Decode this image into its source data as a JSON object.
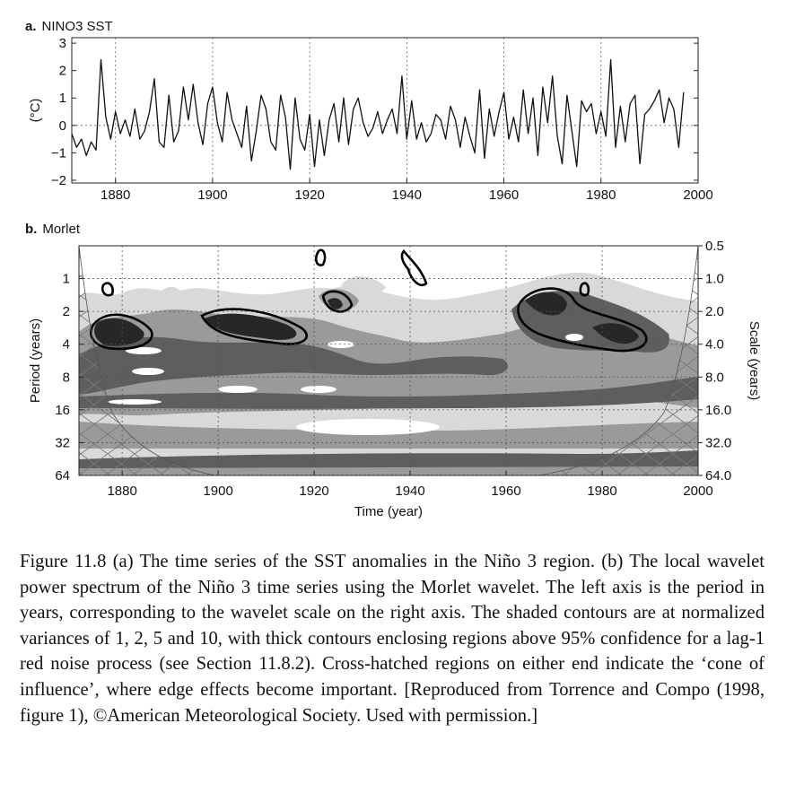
{
  "chart_data": [
    {
      "panel_label": "a.",
      "title": "NINO3 SST",
      "type": "line",
      "ylabel": "(°C)",
      "xlabel": "",
      "xlim": [
        1871,
        2000
      ],
      "ylim": [
        -2.1,
        3.2
      ],
      "xticks": [
        1880,
        1900,
        1920,
        1940,
        1960,
        1980,
        2000
      ],
      "yticks": [
        -2,
        -1,
        0,
        1,
        2,
        3
      ],
      "ytick_labels": [
        "−2",
        "−1",
        "0",
        "1",
        "2",
        "3"
      ],
      "grid": "dotted verticals at ticks, dotted zero line",
      "series": [
        {
          "x": [
            1871,
            1872,
            1873,
            1874,
            1875,
            1876,
            1876.5,
            1877,
            1878,
            1879,
            1880,
            1881,
            1882,
            1883,
            1884,
            1885,
            1886,
            1887,
            1888,
            1889,
            1890,
            1891,
            1892,
            1893,
            1894,
            1895,
            1896,
            1897,
            1898,
            1899,
            1900,
            1901,
            1902,
            1903,
            1904,
            1905,
            1906,
            1907,
            1908,
            1909,
            1910,
            1911,
            1912,
            1913,
            1914,
            1915,
            1916,
            1917,
            1918,
            1919,
            1920,
            1921,
            1922,
            1923,
            1924,
            1925,
            1926,
            1927,
            1928,
            1929,
            1930,
            1931,
            1932,
            1933,
            1934,
            1935,
            1936,
            1937,
            1938,
            1939,
            1940,
            1941,
            1942,
            1943,
            1944,
            1945,
            1946,
            1947,
            1948,
            1949,
            1950,
            1951,
            1952,
            1953,
            1954,
            1955,
            1956,
            1957,
            1958,
            1959,
            1960,
            1961,
            1962,
            1963,
            1964,
            1965,
            1966,
            1967,
            1968,
            1969,
            1970,
            1971,
            1972,
            1973,
            1974,
            1975,
            1976,
            1977,
            1978,
            1979,
            1980,
            1981,
            1982,
            1983,
            1984,
            1985,
            1986,
            1987,
            1988,
            1989,
            1990,
            1991,
            1992,
            1993,
            1994,
            1995,
            1996,
            1997
          ],
          "values": [
            -0.3,
            -0.8,
            -0.5,
            -1.1,
            -0.6,
            -0.9,
            0.8,
            2.4,
            0.3,
            -0.5,
            0.5,
            -0.3,
            0.2,
            -0.4,
            0.6,
            -0.5,
            -0.2,
            0.5,
            1.7,
            -0.6,
            -0.8,
            1.1,
            -0.6,
            -0.2,
            1.4,
            0.2,
            1.5,
            0.1,
            -0.7,
            0.8,
            1.4,
            0.1,
            -0.6,
            1.2,
            0.2,
            -0.3,
            -0.8,
            0.7,
            -1.3,
            -0.2,
            1.1,
            0.6,
            -0.6,
            -0.9,
            1.1,
            0.3,
            -1.6,
            1.0,
            -0.5,
            -0.9,
            0.4,
            -1.5,
            0.2,
            -1.1,
            0.2,
            0.8,
            -0.6,
            1.0,
            -0.7,
            0.6,
            1.0,
            0.1,
            -0.4,
            -0.1,
            0.5,
            -0.3,
            0.2,
            0.6,
            -0.3,
            1.8,
            -0.5,
            0.9,
            -0.5,
            0.1,
            -0.6,
            -0.3,
            0.4,
            0.2,
            -0.5,
            0.7,
            0.2,
            -0.8,
            0.3,
            -0.4,
            -1.0,
            1.3,
            -1.2,
            0.6,
            -0.4,
            0.5,
            1.2,
            -0.5,
            0.3,
            -0.6,
            1.3,
            -0.3,
            1.0,
            -1.1,
            1.4,
            0.1,
            1.8,
            -0.4,
            -1.4,
            1.1,
            -0.2,
            -1.5,
            0.9,
            0.5,
            0.8,
            -0.3,
            0.5,
            -0.4,
            2.4,
            -0.8,
            0.7,
            -0.6,
            0.8,
            1.1,
            -1.4,
            0.4,
            0.6,
            0.9,
            1.3,
            0.1,
            1.0,
            0.6,
            -0.8,
            1.2
          ]
        }
      ]
    },
    {
      "panel_label": "b.",
      "title": "Morlet",
      "type": "heatmap",
      "xlabel": "Time (year)",
      "ylabel": "Period (years)",
      "ylabel_right": "Scale (years)",
      "xlim": [
        1871,
        2000
      ],
      "xticks": [
        1880,
        1900,
        1920,
        1940,
        1960,
        1980,
        2000
      ],
      "yscale": "log2",
      "period_ticks": [
        1,
        2,
        4,
        8,
        16,
        32,
        64
      ],
      "scale_ticks": [
        "0.5",
        "1.0",
        "2.0",
        "4.0",
        "8.0",
        "16.0",
        "32.0",
        "64.0"
      ],
      "contour_levels": [
        1,
        2,
        5,
        10
      ],
      "level_colors": [
        "#d9d9d9",
        "#9a9a9a",
        "#5e5e5e",
        "#272727"
      ],
      "significant_regions": [
        {
          "period_range": [
            2,
            6
          ],
          "year_range": [
            1875,
            1887
          ]
        },
        {
          "period_range": [
            2,
            4
          ],
          "year_range": [
            1899,
            1920
          ]
        },
        {
          "period_range": [
            2,
            4
          ],
          "year_range": [
            1925,
            1932
          ]
        },
        {
          "period_range": [
            2,
            5
          ],
          "year_range": [
            1967,
            1992
          ]
        }
      ],
      "cone_of_influence": "cross-hatched at both ends"
    }
  ],
  "caption": "Figure 11.8 (a) The time series of the SST anomalies in the Niño 3 region. (b) The local wavelet power spectrum of the Niño 3 time series using the Morlet wavelet. The left axis is the period in years, corresponding to the wavelet scale on the right axis. The shaded contours are at normalized variances of 1, 2, 5 and 10, with thick contours enclosing regions above 95% confidence for a lag-1 red noise process (see Section 11.8.2). Cross-hatched regions on either end indicate the ‘cone of influence’, where edge effects become important. [Reproduced from Torrence and Compo (1998, figure 1), ©American Meteorological Society. Used with permission.]"
}
